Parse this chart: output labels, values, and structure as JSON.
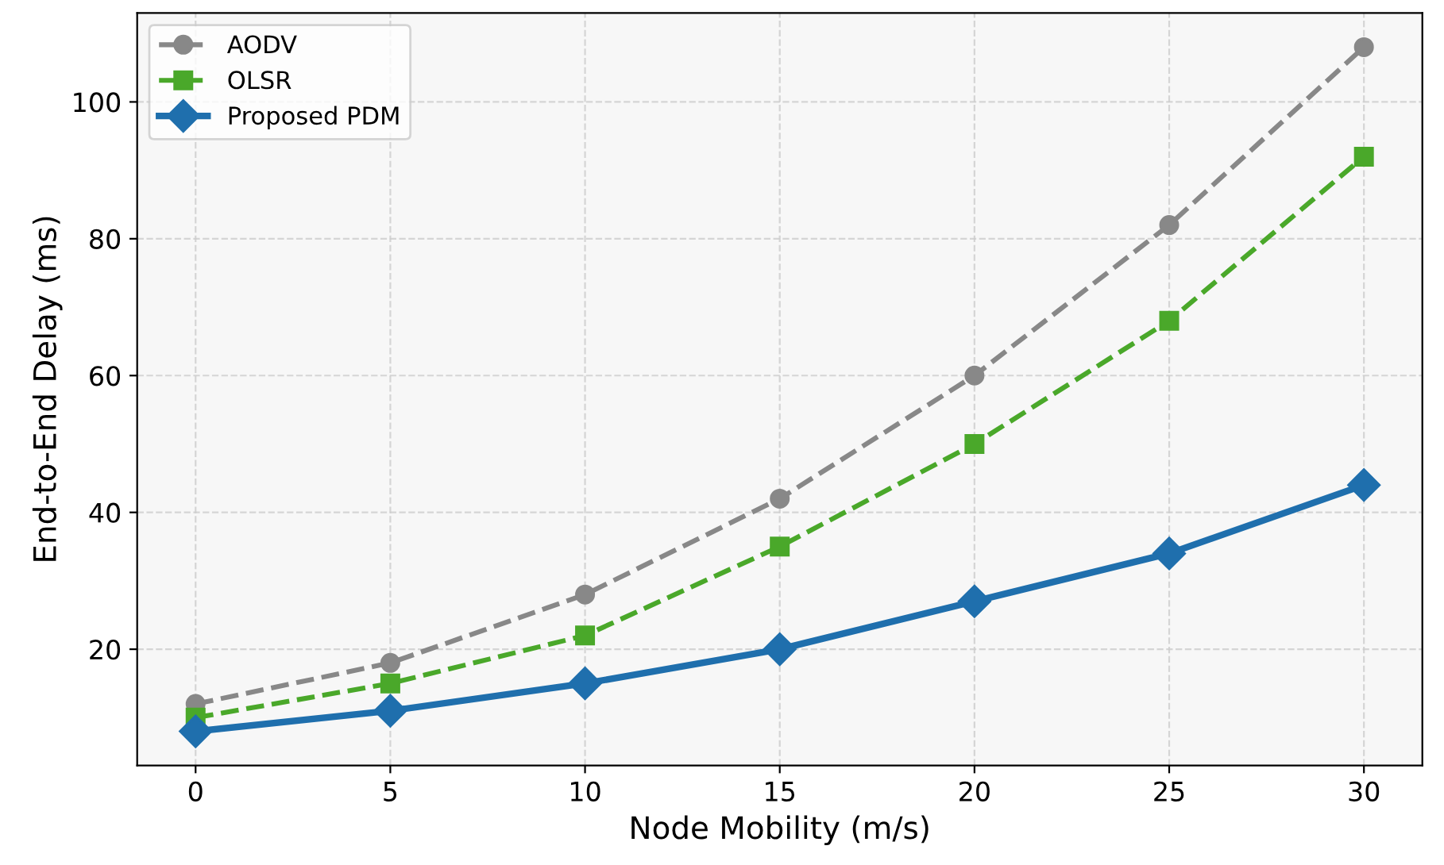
{
  "chart_data": {
    "type": "line",
    "xlabel": "Node Mobility (m/s)",
    "ylabel": "End-to-End Delay (ms)",
    "x": [
      0,
      5,
      10,
      15,
      20,
      25,
      30
    ],
    "series": [
      {
        "name": "AODV",
        "color": "#888888",
        "marker": "circle",
        "line_style": "dashed",
        "values": [
          12,
          18,
          28,
          42,
          60,
          82,
          108
        ]
      },
      {
        "name": "OLSR",
        "color": "#4aa82a",
        "marker": "square",
        "line_style": "dashed",
        "values": [
          10,
          15,
          22,
          35,
          50,
          68,
          92
        ]
      },
      {
        "name": "Proposed PDM",
        "color": "#1f6fad",
        "marker": "diamond",
        "line_style": "solid",
        "values": [
          8,
          11,
          15,
          20,
          27,
          34,
          44
        ]
      }
    ],
    "xlim": [
      -1.5,
      31.5
    ],
    "ylim": [
      3,
      113
    ],
    "xticks": [
      0,
      5,
      10,
      15,
      20,
      25,
      30
    ],
    "yticks": [
      20,
      40,
      60,
      80,
      100
    ],
    "grid": true,
    "legend": "top left"
  }
}
